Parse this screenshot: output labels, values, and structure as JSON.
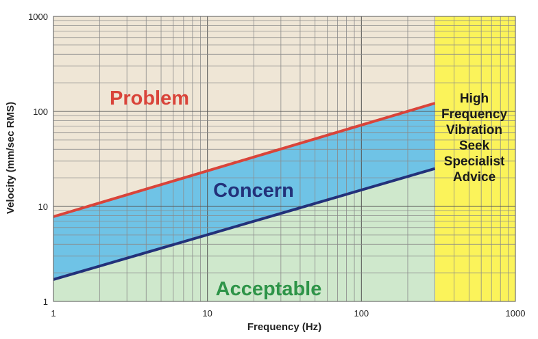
{
  "chart_data": {
    "type": "line",
    "title": "",
    "xlabel": "Frequency (Hz)",
    "ylabel": "Velocity (mm/sec RMS)",
    "xscale": "log",
    "yscale": "log",
    "xlim": [
      1,
      1000
    ],
    "ylim": [
      1,
      1000
    ],
    "x_ticks": [
      "1",
      "10",
      "100",
      "1000"
    ],
    "y_ticks": [
      "1",
      "10",
      "100",
      "1000"
    ],
    "grid": "on",
    "series": [
      {
        "name": "",
        "color": "#d9443a",
        "x": [
          1,
          300
        ],
        "y": [
          7.8,
          122
        ]
      },
      {
        "name": "",
        "color": "#23317a",
        "x": [
          1,
          300
        ],
        "y": [
          1.7,
          25
        ]
      }
    ],
    "zones": [
      {
        "label": "Problem",
        "color": "#d9443a",
        "fill": "#efe6d6"
      },
      {
        "label": "Concern",
        "color": "#23317a",
        "fill": "#6fc3e6"
      },
      {
        "label": "Acceptable",
        "color": "#2e9448",
        "fill": "#cfe8cc"
      }
    ],
    "high_frequency_zone": {
      "x_from": 300,
      "x_to": 1000,
      "fill": "#fbf35a",
      "lines": [
        "High",
        "Frequency",
        "Vibration",
        "Seek",
        "Specialist",
        "Advice"
      ]
    }
  }
}
